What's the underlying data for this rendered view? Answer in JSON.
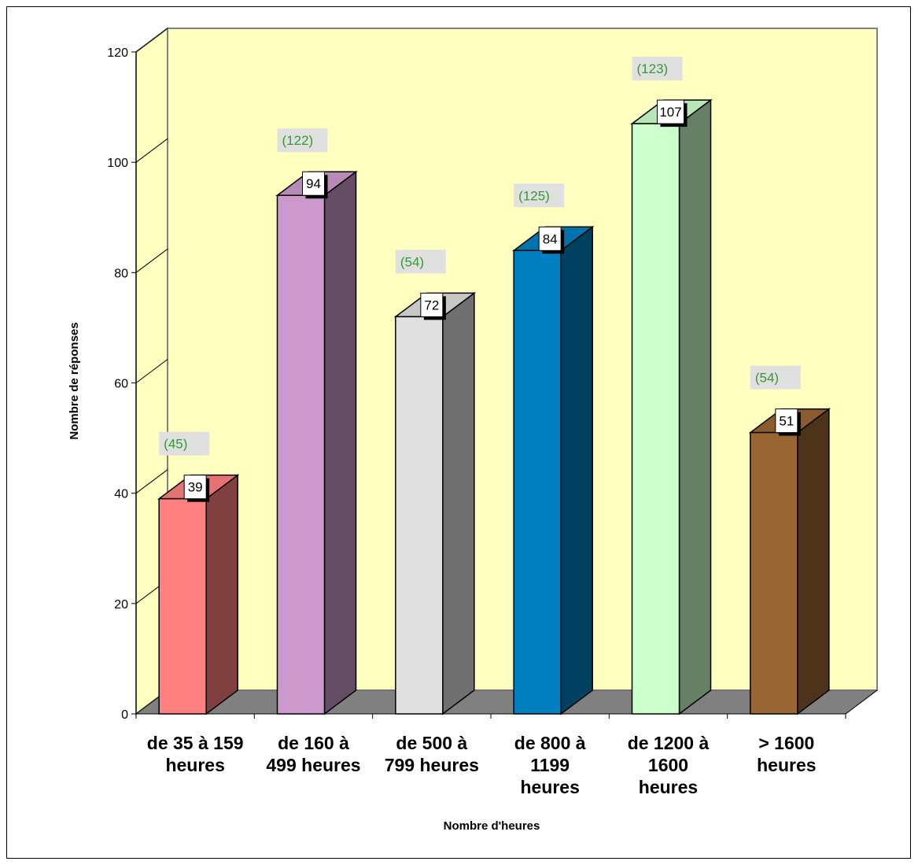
{
  "chart_data": {
    "type": "bar",
    "xlabel": "Nombre d'heures",
    "ylabel": "Nombre de réponses",
    "ylim": [
      0,
      120
    ],
    "y_ticks": [
      "0",
      "20",
      "40",
      "60",
      "80",
      "100",
      "120"
    ],
    "categories": [
      [
        "de 35 à 159",
        "heures"
      ],
      [
        "de 160 à",
        "499 heures"
      ],
      [
        "de 500 à",
        "799 heures"
      ],
      [
        "de 800 à",
        "1199",
        "heures"
      ],
      [
        "de 1200 à",
        "1600",
        "heures"
      ],
      [
        "> 1600",
        "heures"
      ]
    ],
    "values": [
      39,
      94,
      72,
      84,
      107,
      51
    ],
    "value_labels": [
      "39",
      "94",
      "72",
      "84",
      "107",
      "51"
    ],
    "secondary_labels": [
      "(45)",
      "(122)",
      "(54)",
      "(125)",
      "(123)",
      "(54)"
    ],
    "colors": {
      "front": [
        "#ff8080",
        "#cc99cc",
        "#e0e0e0",
        "#0080c0",
        "#ccffcc",
        "#996633"
      ],
      "side": [
        "#804040",
        "#664d66",
        "#707070",
        "#004060",
        "#668066",
        "#4d331a"
      ],
      "top": [
        "#e67373",
        "#b88ab8",
        "#c8c8c8",
        "#0073ad",
        "#b8e6b8",
        "#8a5c2e"
      ],
      "back_wall": "#ffffc0",
      "floor": "#808080",
      "secondary_label_text": "#339933",
      "secondary_label_bg": "#e0e0e0"
    },
    "grid": false,
    "legend": "none"
  }
}
